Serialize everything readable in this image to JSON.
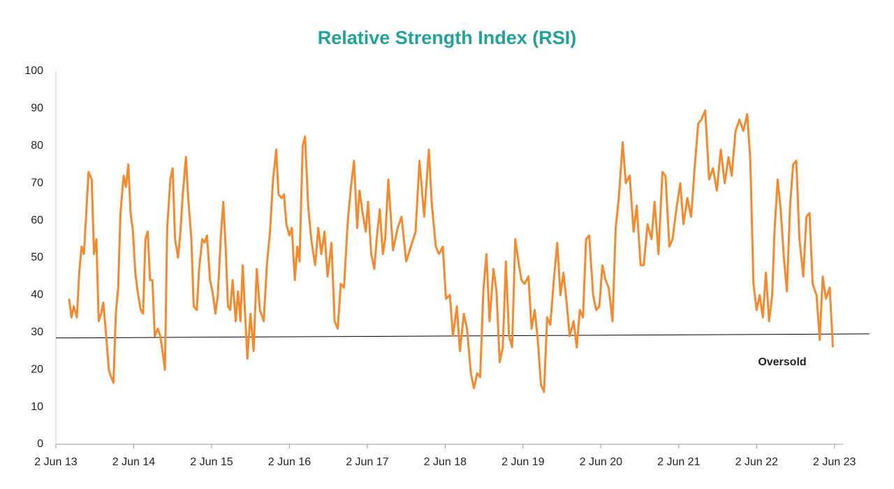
{
  "chart_data": {
    "type": "line",
    "title": "Relative Strength Index (RSI)",
    "x": [
      2013.59,
      2013.62,
      2013.65,
      2013.69,
      2013.72,
      2013.75,
      2013.78,
      2013.81,
      2013.84,
      2013.88,
      2013.91,
      2013.94,
      2013.97,
      2014.0,
      2014.03,
      2014.07,
      2014.1,
      2014.13,
      2014.16,
      2014.19,
      2014.22,
      2014.25,
      2014.29,
      2014.32,
      2014.35,
      2014.38,
      2014.41,
      2014.44,
      2014.47,
      2014.51,
      2014.54,
      2014.57,
      2014.6,
      2014.63,
      2014.66,
      2014.69,
      2014.73,
      2014.76,
      2014.79,
      2014.82,
      2014.85,
      2014.89,
      2014.92,
      2014.95,
      2014.99,
      2015.02,
      2015.05,
      2015.09,
      2015.12,
      2015.16,
      2015.19,
      2015.23,
      2015.26,
      2015.3,
      2015.33,
      2015.36,
      2015.4,
      2015.43,
      2015.47,
      2015.5,
      2015.54,
      2015.57,
      2015.6,
      2015.63,
      2015.66,
      2015.69,
      2015.73,
      2015.76,
      2015.79,
      2015.82,
      2015.85,
      2015.88,
      2015.92,
      2015.96,
      2016.0,
      2016.04,
      2016.09,
      2016.13,
      2016.17,
      2016.21,
      2016.25,
      2016.28,
      2016.32,
      2016.35,
      2016.38,
      2016.42,
      2016.45,
      2016.49,
      2016.52,
      2016.55,
      2016.59,
      2016.62,
      2016.66,
      2016.7,
      2016.75,
      2016.79,
      2016.83,
      2016.87,
      2016.91,
      2016.96,
      2017.0,
      2017.04,
      2017.08,
      2017.12,
      2017.17,
      2017.21,
      2017.25,
      2017.29,
      2017.32,
      2017.36,
      2017.4,
      2017.43,
      2017.47,
      2017.51,
      2017.54,
      2017.58,
      2017.62,
      2017.65,
      2017.69,
      2017.75,
      2017.81,
      2017.86,
      2017.92,
      2017.98,
      2018.04,
      2018.09,
      2018.15,
      2018.21,
      2018.25,
      2018.3,
      2018.34,
      2018.39,
      2018.43,
      2018.48,
      2018.52,
      2018.57,
      2018.61,
      2018.66,
      2018.7,
      2018.75,
      2018.79,
      2018.83,
      2018.87,
      2018.91,
      2018.95,
      2018.99,
      2019.04,
      2019.08,
      2019.12,
      2019.16,
      2019.2,
      2019.24,
      2019.28,
      2019.32,
      2019.36,
      2019.4,
      2019.44,
      2019.49,
      2019.53,
      2019.57,
      2019.61,
      2019.65,
      2019.69,
      2019.73,
      2019.77,
      2019.82,
      2019.86,
      2019.9,
      2019.94,
      2019.98,
      2020.02,
      2020.07,
      2020.11,
      2020.15,
      2020.19,
      2020.23,
      2020.27,
      2020.32,
      2020.36,
      2020.4,
      2020.44,
      2020.48,
      2020.52,
      2020.57,
      2020.61,
      2020.65,
      2020.7,
      2020.74,
      2020.79,
      2020.84,
      2020.88,
      2020.93,
      2020.97,
      2021.02,
      2021.07,
      2021.11,
      2021.16,
      2021.21,
      2021.25,
      2021.3,
      2021.34,
      2021.39,
      2021.44,
      2021.48,
      2021.53,
      2021.58,
      2021.62,
      2021.67,
      2021.71,
      2021.76,
      2021.81,
      2021.86,
      2021.91,
      2021.96,
      2022.01,
      2022.06,
      2022.1,
      2022.15,
      2022.2,
      2022.25,
      2022.3,
      2022.34,
      2022.38,
      2022.42,
      2022.46,
      2022.5,
      2022.54,
      2022.58,
      2022.62,
      2022.65,
      2022.69,
      2022.73,
      2022.77,
      2022.81,
      2022.85,
      2022.89,
      2022.93,
      2022.97,
      2023.02,
      2023.06,
      2023.1,
      2023.14,
      2023.19,
      2023.23,
      2023.27,
      2023.31,
      2023.36,
      2023.4
    ],
    "series": [
      {
        "name": "RSI",
        "color": "#f28a30",
        "values": [
          39,
          34,
          37,
          34,
          46,
          53,
          51,
          62,
          73,
          71,
          51,
          55,
          33,
          35,
          38,
          28,
          20,
          18,
          16.5,
          35,
          42,
          62,
          72,
          69,
          75,
          62,
          57,
          46,
          41,
          36,
          35,
          55,
          57,
          44,
          44,
          29,
          31,
          29,
          25,
          20,
          58,
          71,
          74,
          55,
          50,
          57,
          67,
          77,
          66,
          55,
          37,
          36,
          47,
          55,
          54,
          56,
          44,
          41,
          35,
          40,
          56,
          65,
          53,
          37,
          36,
          44,
          33,
          41,
          33,
          48,
          35,
          23,
          35,
          25,
          47,
          36,
          33,
          48,
          57,
          71,
          79,
          67,
          66,
          67,
          59,
          56,
          58,
          44,
          53,
          49,
          80,
          82.5,
          64,
          55,
          48,
          58,
          51,
          57,
          45,
          54,
          33,
          31,
          43,
          42,
          60,
          69,
          76,
          58,
          68,
          62,
          57,
          65,
          51,
          47,
          55,
          63,
          51,
          55,
          71,
          52,
          58,
          61,
          49,
          53,
          57,
          76,
          61,
          79,
          64,
          53,
          51,
          53,
          39,
          40,
          29,
          37,
          25,
          35,
          31,
          19,
          15,
          19,
          18,
          41,
          51,
          33,
          47,
          41,
          22,
          26,
          49,
          29,
          26,
          55,
          49,
          44,
          43,
          45,
          31,
          36,
          28,
          16,
          14,
          34,
          32,
          45,
          54,
          40,
          46,
          38,
          29,
          33,
          26,
          36,
          34,
          55,
          56,
          40,
          36,
          37,
          48,
          44,
          42,
          33,
          58,
          66,
          81,
          70,
          72,
          57,
          64,
          48,
          48,
          59,
          55,
          65,
          51,
          73,
          72,
          53,
          55,
          63,
          70,
          59,
          66,
          61,
          73,
          86,
          87,
          89.5,
          71,
          74,
          68,
          79,
          70,
          77,
          72,
          84,
          87,
          84,
          88.5,
          76,
          43,
          36,
          40,
          34,
          46,
          33,
          40,
          57,
          71,
          63,
          50,
          41,
          64,
          75,
          76,
          55,
          45,
          61,
          62,
          43,
          40,
          28,
          45,
          39,
          42,
          26
        ]
      }
    ],
    "reference_line": {
      "name": "Oversold",
      "values": [
        28.5,
        29.6
      ],
      "color": "#000000"
    },
    "xlim": [
      2013.42,
      2023.53
    ],
    "xticks": [
      {
        "value": 2013.42,
        "label": "2 Jun 13"
      },
      {
        "value": 2014.42,
        "label": "2 Jun 14"
      },
      {
        "value": 2015.42,
        "label": "2 Jun 15"
      },
      {
        "value": 2016.42,
        "label": "2 Jun 16"
      },
      {
        "value": 2017.42,
        "label": "2 Jun 17"
      },
      {
        "value": 2018.42,
        "label": "2 Jun 18"
      },
      {
        "value": 2019.42,
        "label": "2 Jun 19"
      },
      {
        "value": 2020.42,
        "label": "2 Jun 20"
      },
      {
        "value": 2021.42,
        "label": "2 Jun 21"
      },
      {
        "value": 2022.42,
        "label": "2 Jun 22"
      },
      {
        "value": 2023.42,
        "label": "2 Jun 23"
      }
    ],
    "ylim": [
      0,
      100
    ],
    "yticks": [
      0,
      10,
      20,
      30,
      40,
      50,
      60,
      70,
      80,
      90,
      100
    ],
    "grid": false
  }
}
